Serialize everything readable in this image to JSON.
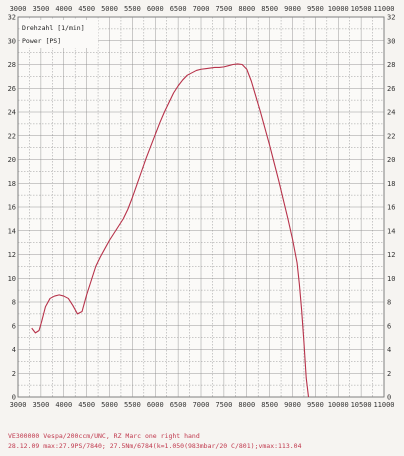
{
  "chart_data": {
    "type": "line",
    "x_ticks": [
      "3000",
      "3500",
      "4000",
      "4500",
      "5000",
      "5500",
      "6000",
      "6500",
      "7000",
      "7500",
      "8000",
      "8500",
      "9000",
      "9500",
      "10000",
      "10500",
      "11000"
    ],
    "y_ticks": [
      "0",
      "2",
      "4",
      "6",
      "8",
      "10",
      "12",
      "14",
      "16",
      "18",
      "20",
      "22",
      "24",
      "26",
      "28",
      "30",
      "32"
    ],
    "xlim": [
      3000,
      11000
    ],
    "ylim": [
      0,
      32
    ],
    "grid": true,
    "legend": [
      "Drehzahl [1/min]",
      "Power [PS]"
    ],
    "series": [
      {
        "name": "Power [PS]",
        "color": "#b7324a",
        "x": [
          3300,
          3380,
          3460,
          3520,
          3600,
          3700,
          3800,
          3900,
          4000,
          4100,
          4200,
          4300,
          4400,
          4500,
          4600,
          4700,
          4800,
          4900,
          5000,
          5100,
          5200,
          5300,
          5400,
          5500,
          5600,
          5700,
          5800,
          5900,
          6000,
          6100,
          6200,
          6300,
          6400,
          6500,
          6600,
          6700,
          6800,
          6900,
          7000,
          7100,
          7200,
          7300,
          7400,
          7500,
          7600,
          7700,
          7800,
          7900,
          8000,
          8100,
          8200,
          8300,
          8400,
          8500,
          8600,
          8700,
          8800,
          8900,
          9000,
          9100,
          9150,
          9200,
          9250,
          9300,
          9350
        ],
        "y": [
          5.8,
          5.4,
          5.6,
          6.4,
          7.6,
          8.3,
          8.5,
          8.6,
          8.5,
          8.3,
          7.7,
          7.0,
          7.2,
          8.6,
          9.8,
          11.0,
          11.8,
          12.5,
          13.2,
          13.8,
          14.4,
          15.0,
          15.8,
          16.8,
          17.9,
          19.0,
          20.1,
          21.1,
          22.1,
          23.1,
          24.0,
          24.8,
          25.6,
          26.2,
          26.7,
          27.1,
          27.3,
          27.5,
          27.6,
          27.65,
          27.7,
          27.75,
          27.75,
          27.8,
          27.9,
          28.0,
          28.05,
          28.0,
          27.6,
          26.6,
          25.3,
          24.0,
          22.6,
          21.2,
          19.7,
          18.2,
          16.6,
          15.0,
          13.3,
          11.3,
          9.5,
          7.3,
          4.6,
          1.6,
          0
        ]
      }
    ]
  },
  "footer": {
    "line1": "VE300000   Vespa/200ccm/UNC, RZ Marc one right hand",
    "line2": "28.12.09  max:27.9PS/7840; 27.5Nm/6784(k=1.050(983mbar/20 C/801);vmax:113.04"
  }
}
